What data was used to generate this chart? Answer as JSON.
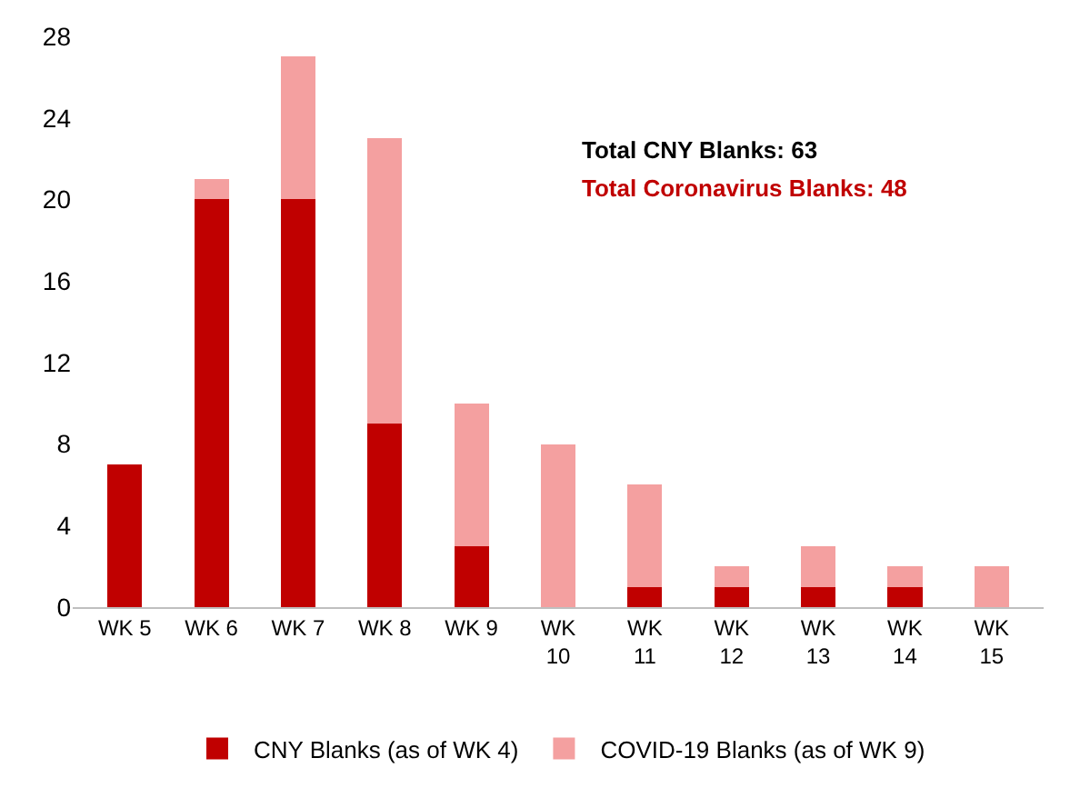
{
  "chart_data": {
    "type": "bar",
    "stacked": true,
    "categories": [
      "WK 5",
      "WK 6",
      "WK 7",
      "WK 8",
      "WK 9",
      "WK 10",
      "WK 11",
      "WK 12",
      "WK 13",
      "WK 14",
      "WK 15"
    ],
    "series": [
      {
        "name": "CNY Blanks (as of WK 4)",
        "color": "#c00000",
        "values": [
          7,
          20,
          20,
          9,
          3,
          0,
          1,
          1,
          1,
          1,
          0
        ]
      },
      {
        "name": "COVID-19 Blanks (as of WK 9)",
        "color": "#f4a0a0",
        "values": [
          0,
          1,
          7,
          14,
          7,
          8,
          5,
          1,
          2,
          1,
          2
        ]
      }
    ],
    "ylim": [
      0,
      28
    ],
    "yticks": [
      0,
      4,
      8,
      12,
      16,
      20,
      24,
      28
    ],
    "legend": "bottom",
    "annotations": [
      "Total CNY Blanks: 63",
      "Total Coronavirus Blanks: 48"
    ]
  }
}
